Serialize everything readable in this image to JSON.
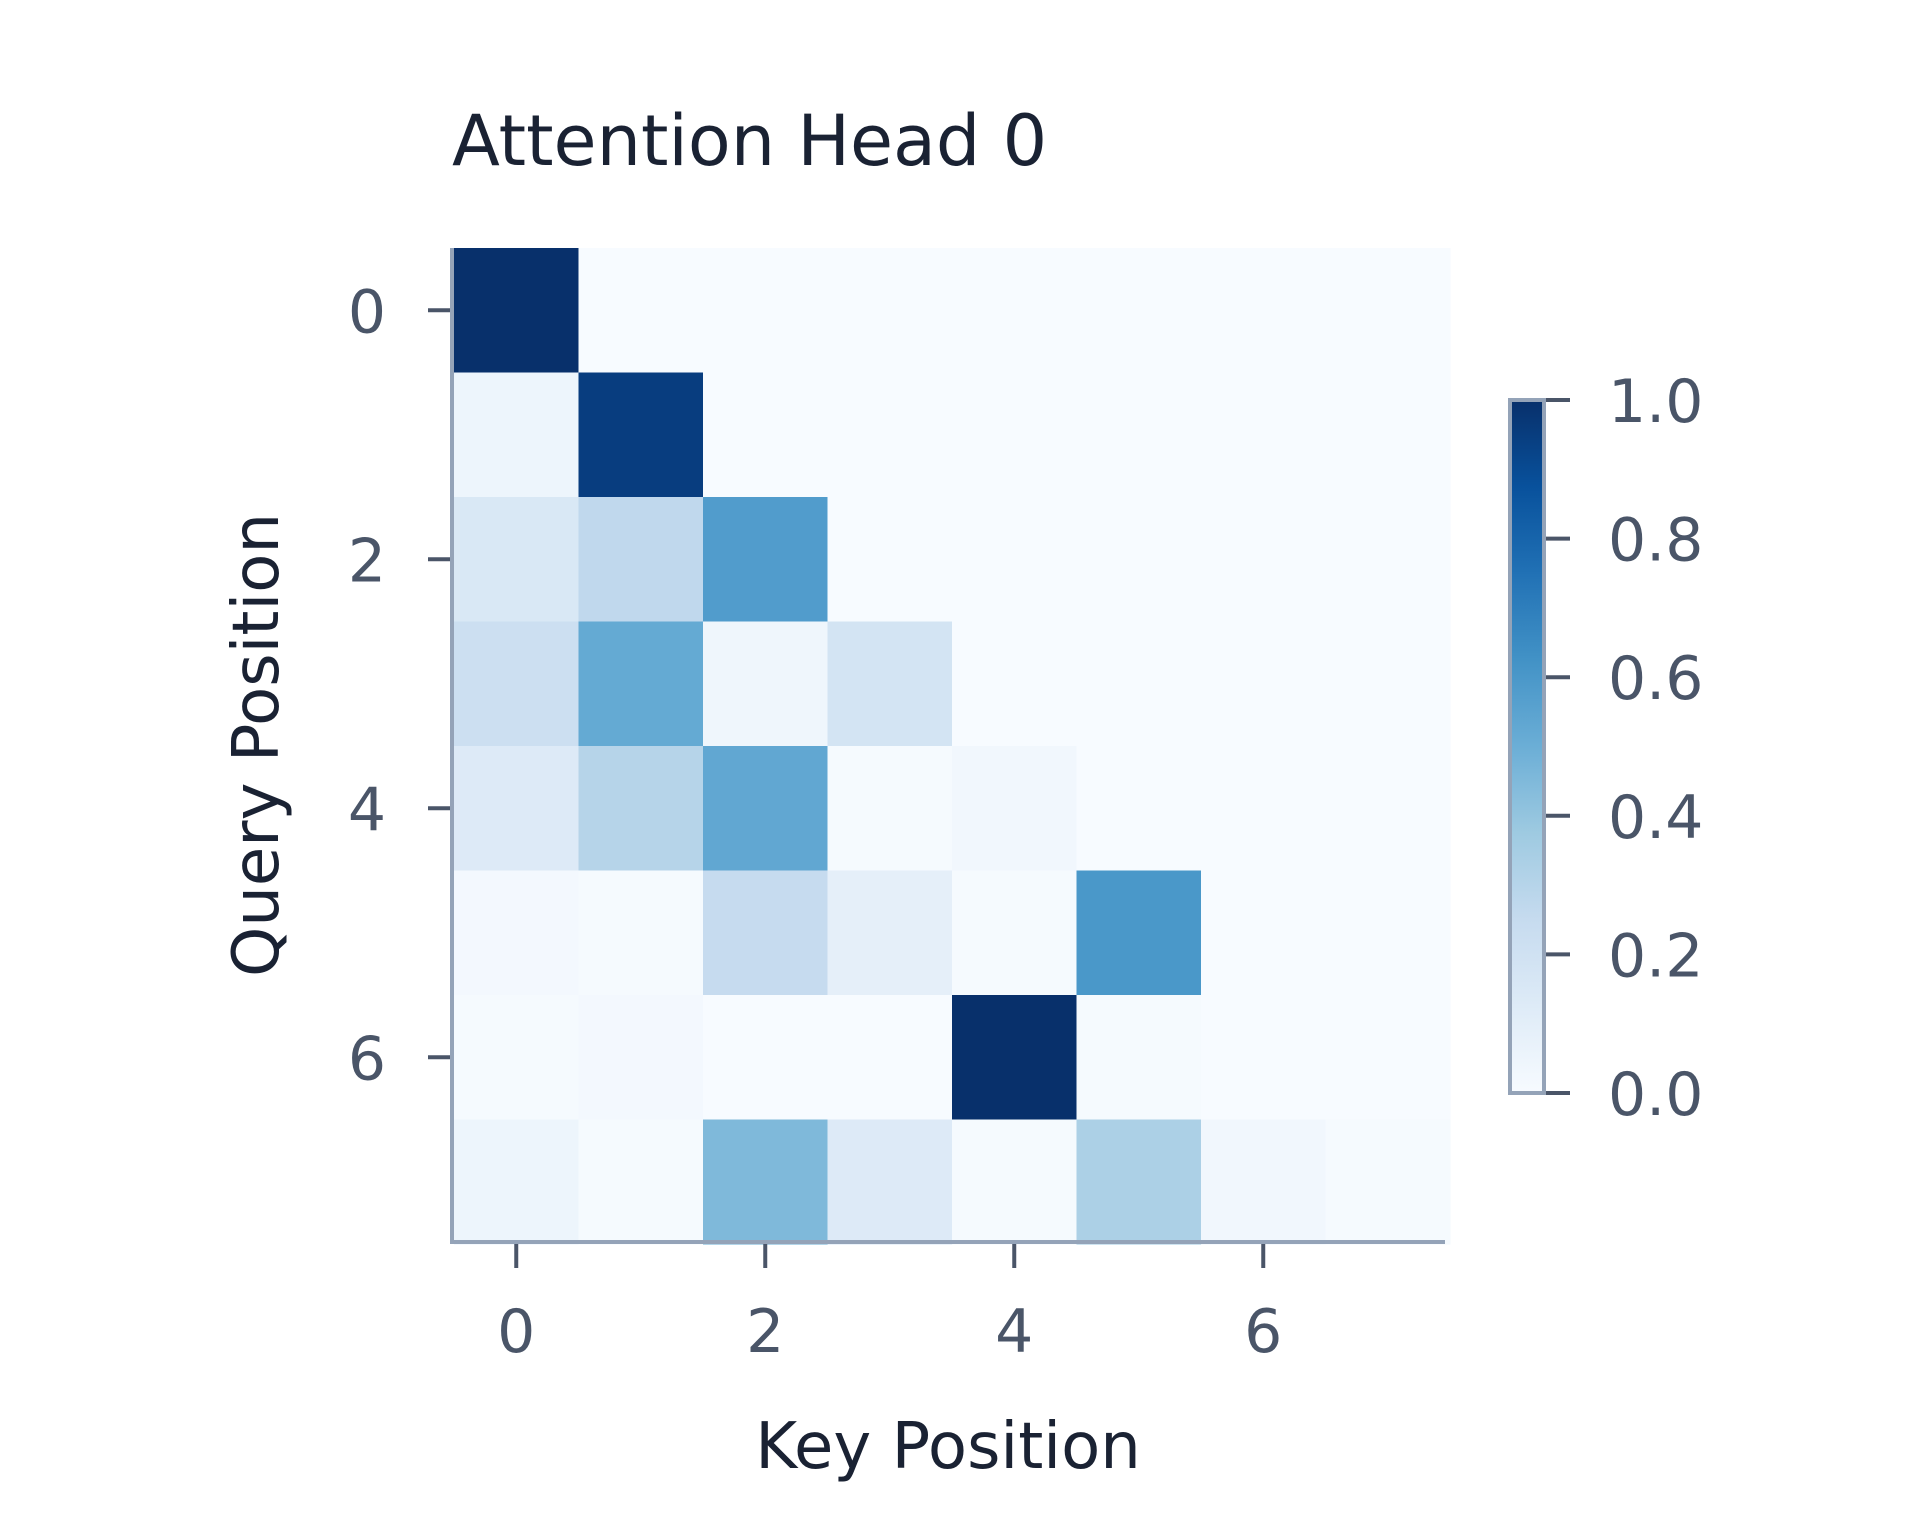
{
  "chart_data": {
    "type": "heatmap",
    "title": "Attention Head 0",
    "xlabel": "Key Position",
    "ylabel": "Query Position",
    "rows": 8,
    "cols": 8,
    "x_ticks": [
      0,
      2,
      4,
      6
    ],
    "y_ticks": [
      0,
      2,
      4,
      6
    ],
    "colorbar": {
      "min": 0.0,
      "max": 1.0,
      "ticks": [
        "0.0",
        "0.2",
        "0.4",
        "0.6",
        "0.8",
        "1.0"
      ],
      "colormap": "Blues"
    },
    "values": [
      [
        1.0,
        0.0,
        0.0,
        0.0,
        0.0,
        0.0,
        0.0,
        0.0
      ],
      [
        0.05,
        0.95,
        0.0,
        0.0,
        0.0,
        0.0,
        0.0,
        0.0
      ],
      [
        0.15,
        0.27,
        0.58,
        0.0,
        0.0,
        0.0,
        0.0,
        0.0
      ],
      [
        0.22,
        0.52,
        0.04,
        0.18,
        0.0,
        0.0,
        0.0,
        0.0
      ],
      [
        0.13,
        0.3,
        0.53,
        0.01,
        0.03,
        0.0,
        0.0,
        0.0
      ],
      [
        0.02,
        0.01,
        0.25,
        0.09,
        0.01,
        0.6,
        0.0,
        0.0
      ],
      [
        0.01,
        0.02,
        0.0,
        0.0,
        1.0,
        0.01,
        0.0,
        0.0
      ],
      [
        0.05,
        0.01,
        0.45,
        0.13,
        0.01,
        0.33,
        0.03,
        0.01
      ]
    ],
    "grid": false
  }
}
